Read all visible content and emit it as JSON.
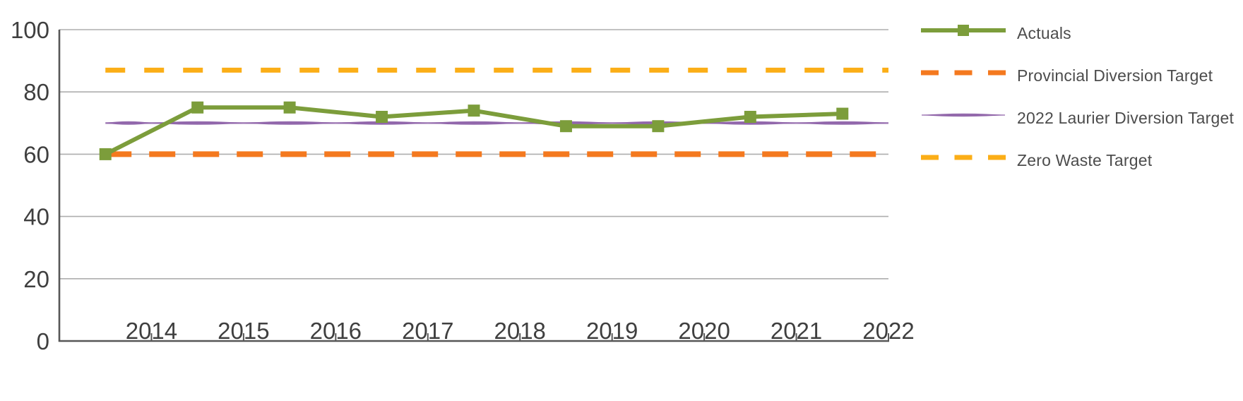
{
  "chart_data": {
    "type": "line",
    "title": "",
    "xlabel": "",
    "ylabel": "",
    "categories": [
      "2014",
      "2015",
      "2016",
      "2017",
      "2018",
      "2019",
      "2020",
      "2021",
      "2022"
    ],
    "yticks": [
      "100",
      "80",
      "60",
      "40",
      "20",
      "0"
    ],
    "ytick_values": [
      100,
      80,
      60,
      40,
      20,
      0
    ],
    "ylim": [
      0,
      100
    ],
    "grid": true,
    "legend_position": "right",
    "series": [
      {
        "name": "Actuals",
        "values": [
          60,
          75,
          75,
          72,
          74,
          69,
          69,
          72,
          73
        ],
        "color": "#7c9d3b",
        "style": "solid-square-markers"
      },
      {
        "name": "Provincial Diversion Target",
        "values": [
          60,
          60,
          60,
          60,
          60,
          60,
          60,
          60,
          60
        ],
        "color": "#f4791f",
        "style": "dashed"
      },
      {
        "name": "2022 Laurier Diversion Target",
        "values": [
          70,
          70,
          70,
          70,
          70,
          70,
          70,
          70,
          70
        ],
        "color": "#8e63a8",
        "style": "tapered-solid"
      },
      {
        "name": "Zero Waste Target",
        "values": [
          87,
          87,
          87,
          87,
          87,
          87,
          87,
          87,
          87
        ],
        "color": "#fbae17",
        "style": "dashed"
      }
    ],
    "colors": {
      "axis": "#575757",
      "grid": "#aeaeae",
      "tick_text": "#3f3f3f",
      "legend_text": "#4c4c4c",
      "background": "#ffffff"
    }
  }
}
